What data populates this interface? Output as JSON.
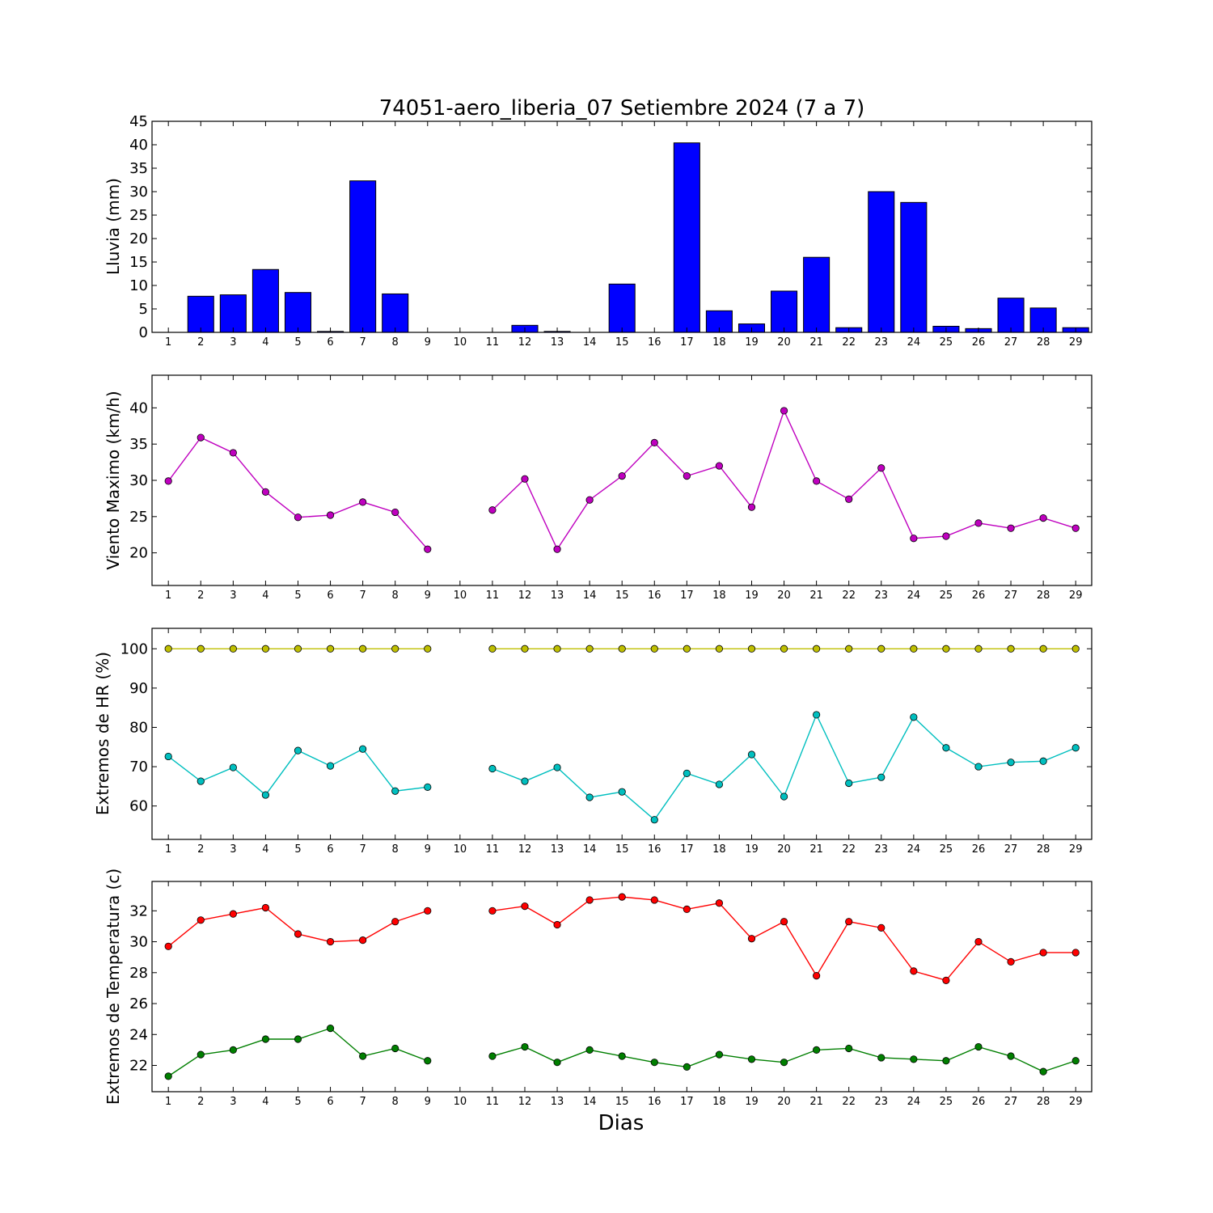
{
  "chart_data": [
    {
      "type": "bar",
      "title": "74051-aero_liberia_07 Setiembre 2024  (7 a 7)",
      "xlabel": "",
      "ylabel": "Lluvia (mm)",
      "ylim": [
        0,
        45
      ],
      "yticks": [
        0,
        5,
        10,
        15,
        20,
        25,
        30,
        35,
        40,
        45
      ],
      "categories": [
        1,
        2,
        3,
        4,
        5,
        6,
        7,
        8,
        9,
        10,
        11,
        12,
        13,
        14,
        15,
        16,
        17,
        18,
        19,
        20,
        21,
        22,
        23,
        24,
        25,
        26,
        27,
        28,
        29
      ],
      "values": [
        0,
        7.7,
        8.0,
        13.4,
        8.5,
        0.2,
        32.3,
        8.2,
        0,
        0,
        0,
        1.5,
        0.2,
        0,
        10.3,
        0,
        40.4,
        4.6,
        1.8,
        8.8,
        16.0,
        1.0,
        30.0,
        27.7,
        1.3,
        0.8,
        7.3,
        5.2,
        1.0
      ],
      "colors": {
        "bar": "#0000ff",
        "edge": "#000000"
      }
    },
    {
      "type": "line",
      "ylabel": "Viento Maximo (km/h)",
      "ylim": [
        15.5,
        44.5
      ],
      "yticks": [
        20,
        25,
        30,
        35,
        40
      ],
      "categories": [
        1,
        2,
        3,
        4,
        5,
        6,
        7,
        8,
        9,
        10,
        11,
        12,
        13,
        14,
        15,
        16,
        17,
        18,
        19,
        20,
        21,
        22,
        23,
        24,
        25,
        26,
        27,
        28,
        29
      ],
      "series": [
        {
          "color": "#bf00bf",
          "values": [
            29.9,
            35.9,
            33.8,
            28.4,
            24.9,
            25.2,
            27.0,
            25.6,
            20.5,
            null,
            25.9,
            30.2,
            20.5,
            27.3,
            30.6,
            35.2,
            30.6,
            32.0,
            26.3,
            39.6,
            29.9,
            27.4,
            31.7,
            22.0,
            22.3,
            24.1,
            23.4,
            24.8,
            23.4
          ]
        }
      ]
    },
    {
      "type": "line",
      "ylabel": "Extremos de HR (%)",
      "ylim": [
        51.5,
        105.2
      ],
      "yticks": [
        60,
        70,
        80,
        90,
        100
      ],
      "categories": [
        1,
        2,
        3,
        4,
        5,
        6,
        7,
        8,
        9,
        10,
        11,
        12,
        13,
        14,
        15,
        16,
        17,
        18,
        19,
        20,
        21,
        22,
        23,
        24,
        25,
        26,
        27,
        28,
        29
      ],
      "series": [
        {
          "color": "#bfbf00",
          "values": [
            100,
            100,
            100,
            100,
            100,
            100,
            100,
            100,
            100,
            null,
            100,
            100,
            100,
            100,
            100,
            100,
            100,
            100,
            100,
            100,
            100,
            100,
            100,
            100,
            100,
            100,
            100,
            100,
            100
          ]
        },
        {
          "color": "#00bfbf",
          "values": [
            72.6,
            66.3,
            69.8,
            62.8,
            74.1,
            70.2,
            74.5,
            63.8,
            64.8,
            null,
            69.5,
            66.3,
            69.8,
            62.2,
            63.6,
            56.5,
            68.3,
            65.5,
            73.1,
            62.4,
            83.2,
            65.8,
            67.3,
            82.6,
            74.8,
            70.0,
            71.1,
            71.4,
            74.8
          ]
        }
      ]
    },
    {
      "type": "line",
      "xlabel": "Dias",
      "ylabel": "Extremos de Temperatura (c)",
      "ylim": [
        20.3,
        33.9
      ],
      "yticks": [
        22,
        24,
        26,
        28,
        30,
        32
      ],
      "categories": [
        1,
        2,
        3,
        4,
        5,
        6,
        7,
        8,
        9,
        10,
        11,
        12,
        13,
        14,
        15,
        16,
        17,
        18,
        19,
        20,
        21,
        22,
        23,
        24,
        25,
        26,
        27,
        28,
        29
      ],
      "series": [
        {
          "color": "#ff0000",
          "values": [
            29.7,
            31.4,
            31.8,
            32.2,
            30.5,
            30.0,
            30.1,
            31.3,
            32.0,
            null,
            32.0,
            32.3,
            31.1,
            32.7,
            32.9,
            32.7,
            32.1,
            32.5,
            30.2,
            31.3,
            27.8,
            31.3,
            30.9,
            28.1,
            27.5,
            30.0,
            28.7,
            29.3,
            29.3
          ]
        },
        {
          "color": "#007f00",
          "values": [
            21.3,
            22.7,
            23.0,
            23.7,
            23.7,
            24.4,
            22.6,
            23.1,
            22.3,
            null,
            22.6,
            23.2,
            22.2,
            23.0,
            22.6,
            22.2,
            21.9,
            22.7,
            22.4,
            22.2,
            23.0,
            23.1,
            22.5,
            22.4,
            22.3,
            23.2,
            22.6,
            21.6,
            22.3
          ]
        }
      ]
    }
  ]
}
